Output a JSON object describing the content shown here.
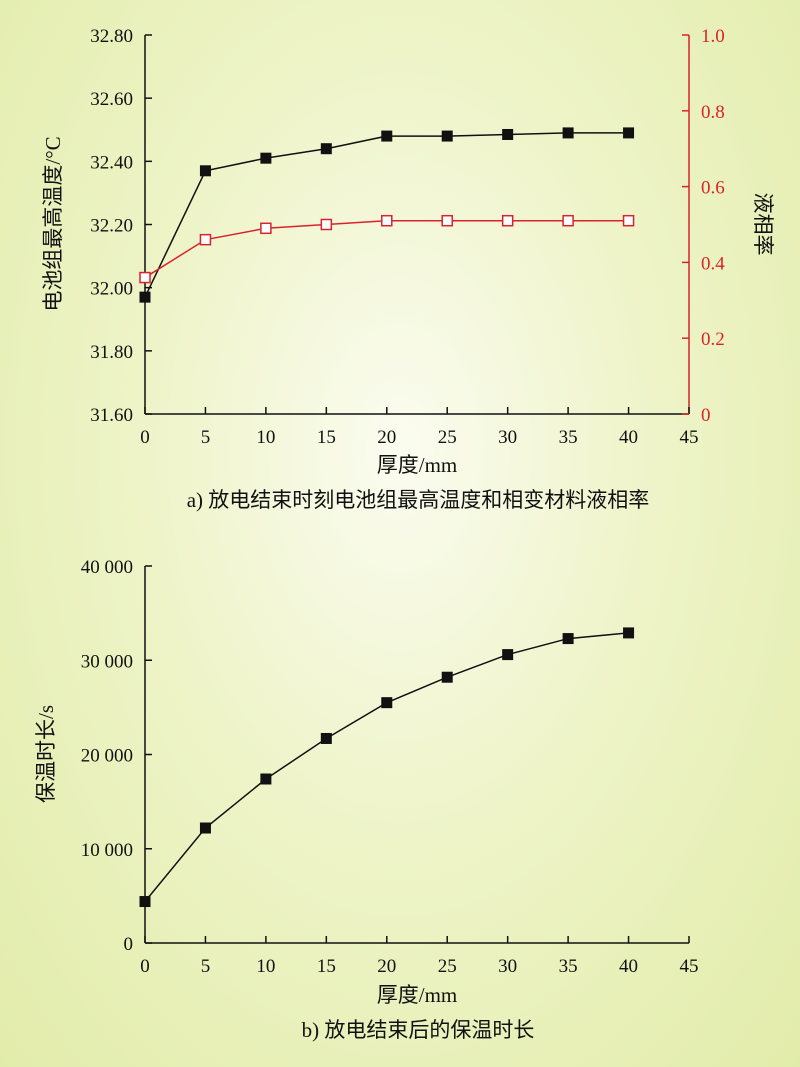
{
  "colors": {
    "primary": "#111111",
    "secondary": "#d8232e"
  },
  "chart_data": [
    {
      "type": "line",
      "caption": "a) 放电结束时刻电池组最高温度和相变材料液相率",
      "xlabel": "厚度/mm",
      "ylabel": "电池组最高温度/°C",
      "y2label": "液相率",
      "xlim": [
        0,
        45
      ],
      "ylim": [
        31.6,
        32.8
      ],
      "y2lim": [
        0,
        1.0
      ],
      "x_ticks": [
        "0",
        "5",
        "10",
        "15",
        "20",
        "25",
        "30",
        "35",
        "40",
        "45"
      ],
      "y_ticks": [
        "31.60",
        "31.80",
        "32.00",
        "32.20",
        "32.40",
        "32.60",
        "32.80"
      ],
      "y2_ticks": [
        "0",
        "0.2",
        "0.4",
        "0.6",
        "0.8",
        "1.0"
      ],
      "x": [
        0,
        5,
        10,
        15,
        20,
        25,
        30,
        35,
        40
      ],
      "series": [
        {
          "axis": "left",
          "marker": "filled-square",
          "color": "#111111",
          "values": [
            31.97,
            32.37,
            32.41,
            32.44,
            32.48,
            32.48,
            32.485,
            32.49,
            32.49
          ]
        },
        {
          "axis": "right",
          "marker": "open-square",
          "color": "#d8232e",
          "values": [
            0.36,
            0.46,
            0.49,
            0.5,
            0.51,
            0.51,
            0.51,
            0.51,
            0.51
          ]
        }
      ]
    },
    {
      "type": "line",
      "caption": "b) 放电结束后的保温时长",
      "xlabel": "厚度/mm",
      "ylabel": "保温时长/s",
      "xlim": [
        0,
        45
      ],
      "ylim": [
        0,
        40000
      ],
      "x_ticks": [
        "0",
        "5",
        "10",
        "15",
        "20",
        "25",
        "30",
        "35",
        "40",
        "45"
      ],
      "y_ticks": [
        "0",
        "10 000",
        "20 000",
        "30 000",
        "40 000"
      ],
      "x": [
        0,
        5,
        10,
        15,
        20,
        25,
        30,
        35,
        40
      ],
      "series": [
        {
          "axis": "left",
          "marker": "filled-square",
          "color": "#111111",
          "values": [
            4400,
            12200,
            17400,
            21700,
            25500,
            28200,
            30600,
            32300,
            32900
          ]
        }
      ]
    }
  ]
}
